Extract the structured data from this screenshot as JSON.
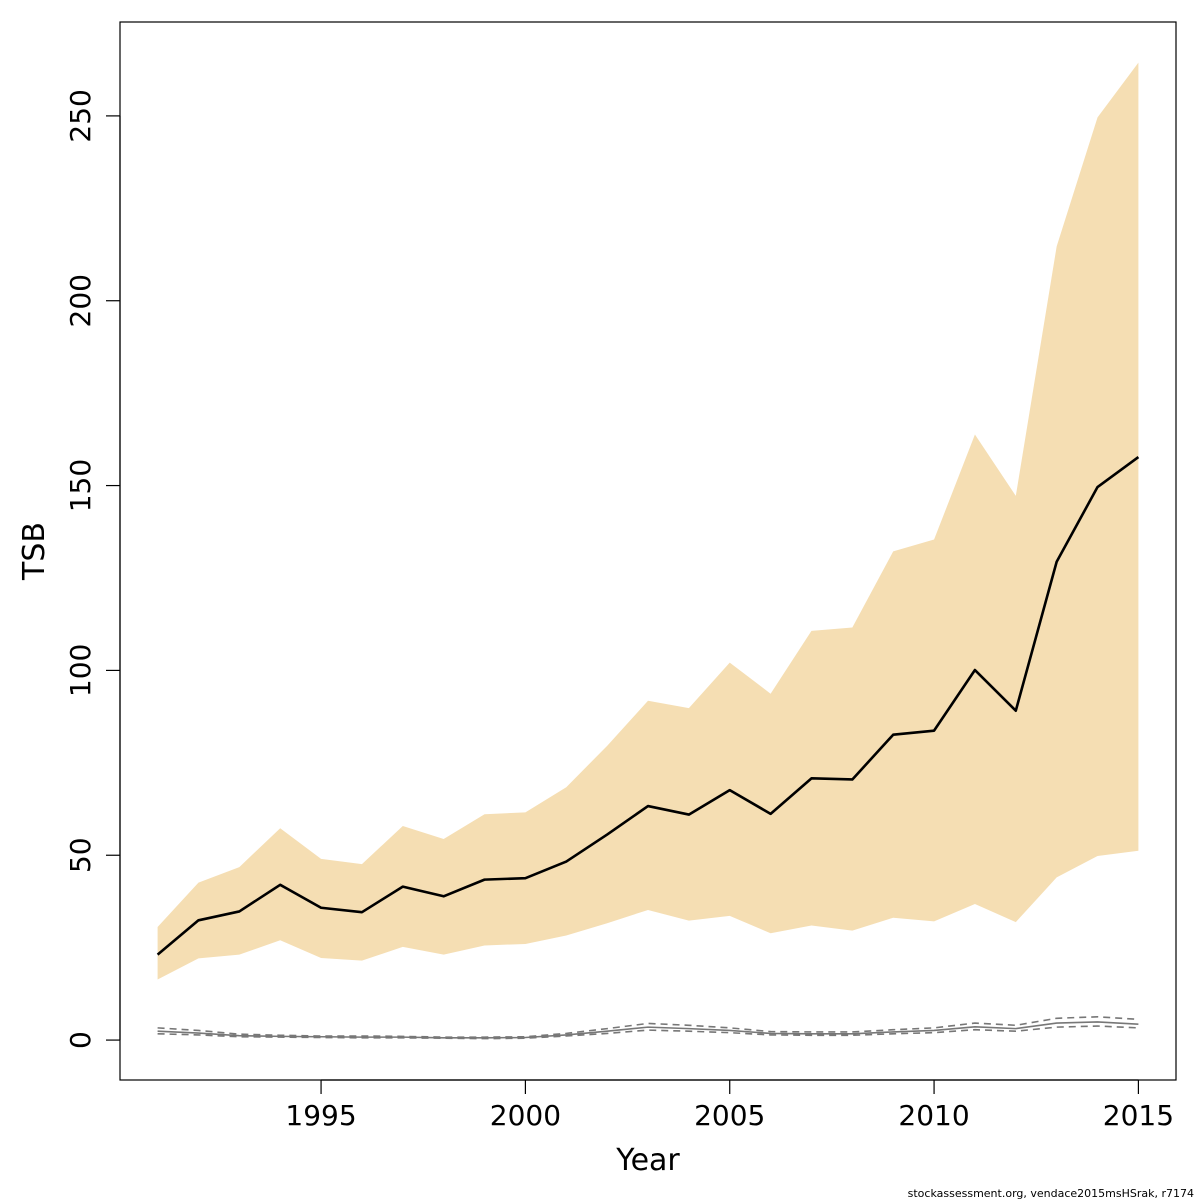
{
  "chart_data": {
    "type": "line",
    "xlabel": "Year",
    "ylabel": "TSB",
    "xlim": [
      1990.08,
      2015.92
    ],
    "ylim": [
      -10.8,
      275.4
    ],
    "x_ticks": [
      1995,
      2000,
      2005,
      2010,
      2015
    ],
    "y_ticks": [
      0,
      50,
      100,
      150,
      200,
      250
    ],
    "grid": false,
    "x": [
      1991,
      1992,
      1993,
      1994,
      1995,
      1996,
      1997,
      1998,
      1999,
      2000,
      2001,
      2002,
      2003,
      2004,
      2005,
      2006,
      2007,
      2008,
      2009,
      2010,
      2011,
      2012,
      2013,
      2014,
      2015
    ],
    "series": [
      {
        "role": "estimate",
        "style": "solid",
        "color": "#000000",
        "values": [
          23.1,
          32.4,
          34.8,
          42.0,
          35.8,
          34.6,
          41.5,
          38.9,
          43.4,
          43.8,
          48.3,
          55.6,
          63.3,
          61.0,
          67.6,
          61.2,
          70.8,
          70.5,
          82.6,
          83.7,
          100.1,
          89.1,
          129.4,
          149.6,
          157.7
        ]
      },
      {
        "role": "upper_bound",
        "style": "band",
        "color": "#F5DEB3",
        "values": [
          30.6,
          42.6,
          46.8,
          57.3,
          49.0,
          47.6,
          57.9,
          54.4,
          61.1,
          61.6,
          68.4,
          79.6,
          91.8,
          89.8,
          102.1,
          93.7,
          110.7,
          111.6,
          132.2,
          135.4,
          163.8,
          147.2,
          214.7,
          249.6,
          264.4
        ]
      },
      {
        "role": "lower_bound",
        "style": "band",
        "color": "#F5DEB3",
        "values": [
          16.4,
          22.1,
          23.1,
          27.0,
          22.2,
          21.5,
          25.2,
          23.1,
          25.6,
          26.0,
          28.3,
          31.6,
          35.2,
          32.3,
          33.6,
          28.9,
          31.0,
          29.6,
          33.1,
          32.1,
          36.8,
          31.9,
          44.0,
          49.8,
          51.2
        ]
      },
      {
        "role": "secondary_estimate",
        "style": "solid",
        "color": "#777777",
        "values": [
          2.4,
          1.9,
          1.2,
          1.0,
          0.9,
          0.8,
          0.8,
          0.6,
          0.6,
          0.7,
          1.4,
          2.4,
          3.5,
          3.1,
          2.6,
          1.8,
          1.7,
          1.7,
          2.2,
          2.6,
          3.6,
          3.1,
          4.6,
          4.9,
          4.3
        ]
      },
      {
        "role": "secondary_upper",
        "style": "dashed",
        "color": "#777777",
        "values": [
          3.3,
          2.6,
          1.6,
          1.3,
          1.1,
          1.1,
          1.0,
          0.8,
          0.8,
          0.9,
          1.8,
          3.1,
          4.5,
          4.0,
          3.3,
          2.3,
          2.2,
          2.2,
          2.8,
          3.3,
          4.6,
          4.0,
          5.9,
          6.3,
          5.6
        ]
      },
      {
        "role": "secondary_lower",
        "style": "dashed",
        "color": "#777777",
        "values": [
          1.7,
          1.4,
          0.9,
          0.8,
          0.7,
          0.6,
          0.6,
          0.5,
          0.4,
          0.5,
          1.1,
          1.8,
          2.7,
          2.4,
          2.0,
          1.4,
          1.3,
          1.3,
          1.7,
          2.0,
          2.8,
          2.4,
          3.5,
          3.8,
          3.3
        ]
      }
    ],
    "credit": "stockassessment.org, vendace2015msHSrak, r7174"
  }
}
